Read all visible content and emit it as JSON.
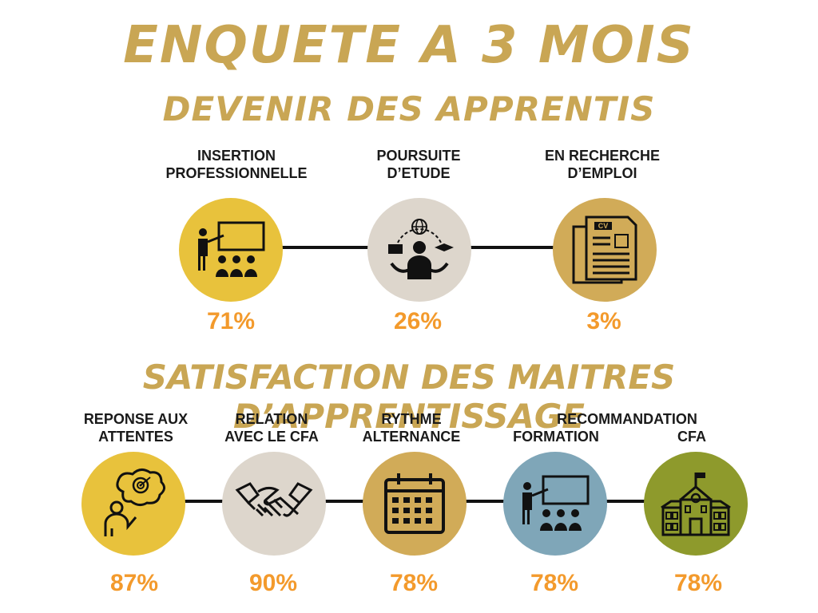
{
  "header": {
    "title": "ENQUETE A 3 MOIS",
    "subtitle": "DEVENIR DES APPRENTIS"
  },
  "devenir": {
    "items": [
      {
        "label": "INSERTION\nPROFESSIONNELLE",
        "percent": "71%",
        "icon": "teacher-presentation-icon",
        "color": "#e8c23c"
      },
      {
        "label": "POURSUITE\nD’ETUDE",
        "percent": "26%",
        "icon": "student-studies-icon",
        "color": "#ddd6cc"
      },
      {
        "label": "EN RECHERCHE\nD’EMPLOI",
        "percent": "3%",
        "icon": "cv-document-icon",
        "color": "#d1ab58"
      }
    ]
  },
  "satisfaction": {
    "title": "SATISFACTION DES MAITRES D’APPRENTISSAGE",
    "items": [
      {
        "label": "REPONSE AUX\nATTENTES",
        "percent": "87%",
        "icon": "target-thinking-icon",
        "color": "#e8c23c"
      },
      {
        "label": "RELATION\nAVEC LE CFA",
        "percent": "90%",
        "icon": "handshake-icon",
        "color": "#ddd6cc"
      },
      {
        "label": "RYTHME\nALTERNANCE",
        "percent": "78%",
        "icon": "calendar-icon",
        "color": "#d1ab58"
      },
      {
        "label": "FORMATION",
        "percent": "78%",
        "icon": "teacher-presentation-icon",
        "color": "#7fa6b8"
      },
      {
        "label": "CFA",
        "percent": "78%",
        "icon": "school-building-icon",
        "color": "#8e9a2c"
      }
    ],
    "recommandation_label": "RECOMMANDATION"
  },
  "colors": {
    "title": "#c9a654",
    "percent": "#f39a2c"
  }
}
